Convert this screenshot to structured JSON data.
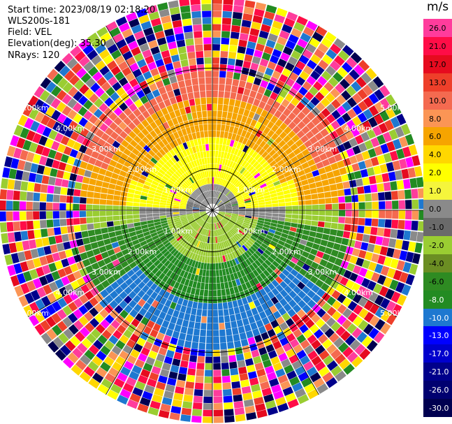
{
  "info": {
    "start_time": "Start time: 2023/08/19 02:18:20",
    "instrument": "WLS200s-181",
    "field": "Field: VEL",
    "elevation": "Elevation(deg): 35.30",
    "nrays": "NRays: 120"
  },
  "colorbar": {
    "units": "m/s",
    "ticks": [
      "26.0",
      "21.0",
      "17.0",
      "13.0",
      "10.0",
      "8.0",
      "6.0",
      "4.0",
      "2.0",
      "1.0",
      "0.0",
      "-1.0",
      "-2.0",
      "-4.0",
      "-6.0",
      "-8.0",
      "-10.0",
      "-13.0",
      "-17.0",
      "-21.0",
      "-26.0",
      "-30.0"
    ],
    "colors": [
      "#ff3c9c",
      "#ff0d47",
      "#e60b1f",
      "#ee3f2a",
      "#f46a50",
      "#fb9555",
      "#f6a400",
      "#ffd700",
      "#ffff00",
      "#f5f53c",
      "#8a8a8a",
      "#6a6a6a",
      "#9acd32",
      "#6b8e23",
      "#2e8b22",
      "#228b22",
      "#1e78d0",
      "#0000ff",
      "#0000cd",
      "#00008b",
      "#000070",
      "#000050"
    ]
  },
  "range_labels": [
    "1.00km",
    "2.00km",
    "3.00km",
    "4.00km",
    "5.00km"
  ]
}
